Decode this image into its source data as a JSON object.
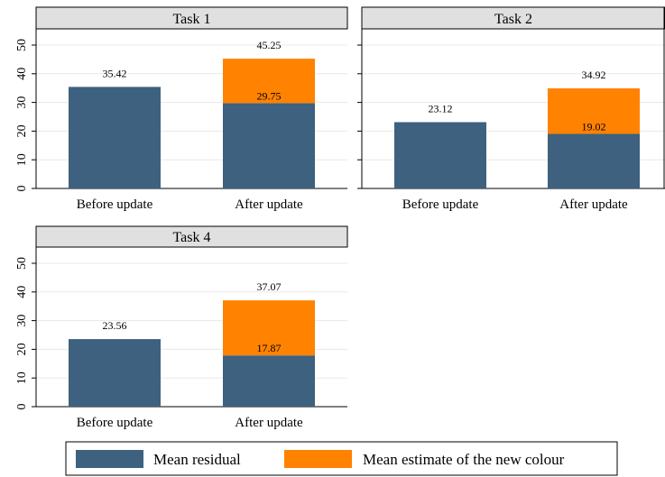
{
  "colors": {
    "residual": "#3d617e",
    "estimate": "#ff8200",
    "header_bg": "#e0e0e0",
    "grid": "#e8e8e8",
    "border": "#000000"
  },
  "legend": {
    "items": [
      {
        "key": "residual",
        "label": "Mean residual"
      },
      {
        "key": "estimate",
        "label": "Mean estimate of the new colour"
      }
    ]
  },
  "chart_data": [
    {
      "type": "bar",
      "stacked": true,
      "title": "Task 1",
      "categories": [
        "Before update",
        "After update"
      ],
      "series": [
        {
          "key": "residual",
          "name": "Mean residual",
          "values": [
            35.42,
            29.75
          ]
        },
        {
          "key": "estimate",
          "name": "Mean estimate of the new colour",
          "values": [
            0,
            15.5
          ]
        }
      ],
      "bar_labels": [
        {
          "category": "Before update",
          "labels": [
            "35.42"
          ]
        },
        {
          "category": "After update",
          "labels": [
            "29.75",
            "45.25"
          ]
        }
      ],
      "ylim": [
        0,
        50
      ],
      "yticks": [
        0,
        10,
        20,
        30,
        40,
        50
      ],
      "grid": true
    },
    {
      "type": "bar",
      "stacked": true,
      "title": "Task 2",
      "categories": [
        "Before update",
        "After update"
      ],
      "series": [
        {
          "key": "residual",
          "name": "Mean residual",
          "values": [
            23.12,
            19.02
          ]
        },
        {
          "key": "estimate",
          "name": "Mean estimate of the new colour",
          "values": [
            0,
            15.9
          ]
        }
      ],
      "bar_labels": [
        {
          "category": "Before update",
          "labels": [
            "23.12"
          ]
        },
        {
          "category": "After update",
          "labels": [
            "19.02",
            "34.92"
          ]
        }
      ],
      "ylim": [
        0,
        50
      ],
      "yticks": [
        0,
        10,
        20,
        30,
        40,
        50
      ],
      "grid": true
    },
    {
      "type": "bar",
      "stacked": true,
      "title": "Task 4",
      "categories": [
        "Before update",
        "After update"
      ],
      "series": [
        {
          "key": "residual",
          "name": "Mean residual",
          "values": [
            23.56,
            17.87
          ]
        },
        {
          "key": "estimate",
          "name": "Mean estimate of the new colour",
          "values": [
            0,
            19.2
          ]
        }
      ],
      "bar_labels": [
        {
          "category": "Before update",
          "labels": [
            "23.56"
          ]
        },
        {
          "category": "After update",
          "labels": [
            "17.87",
            "37.07"
          ]
        }
      ],
      "ylim": [
        0,
        50
      ],
      "yticks": [
        0,
        10,
        20,
        30,
        40,
        50
      ],
      "grid": true
    }
  ]
}
